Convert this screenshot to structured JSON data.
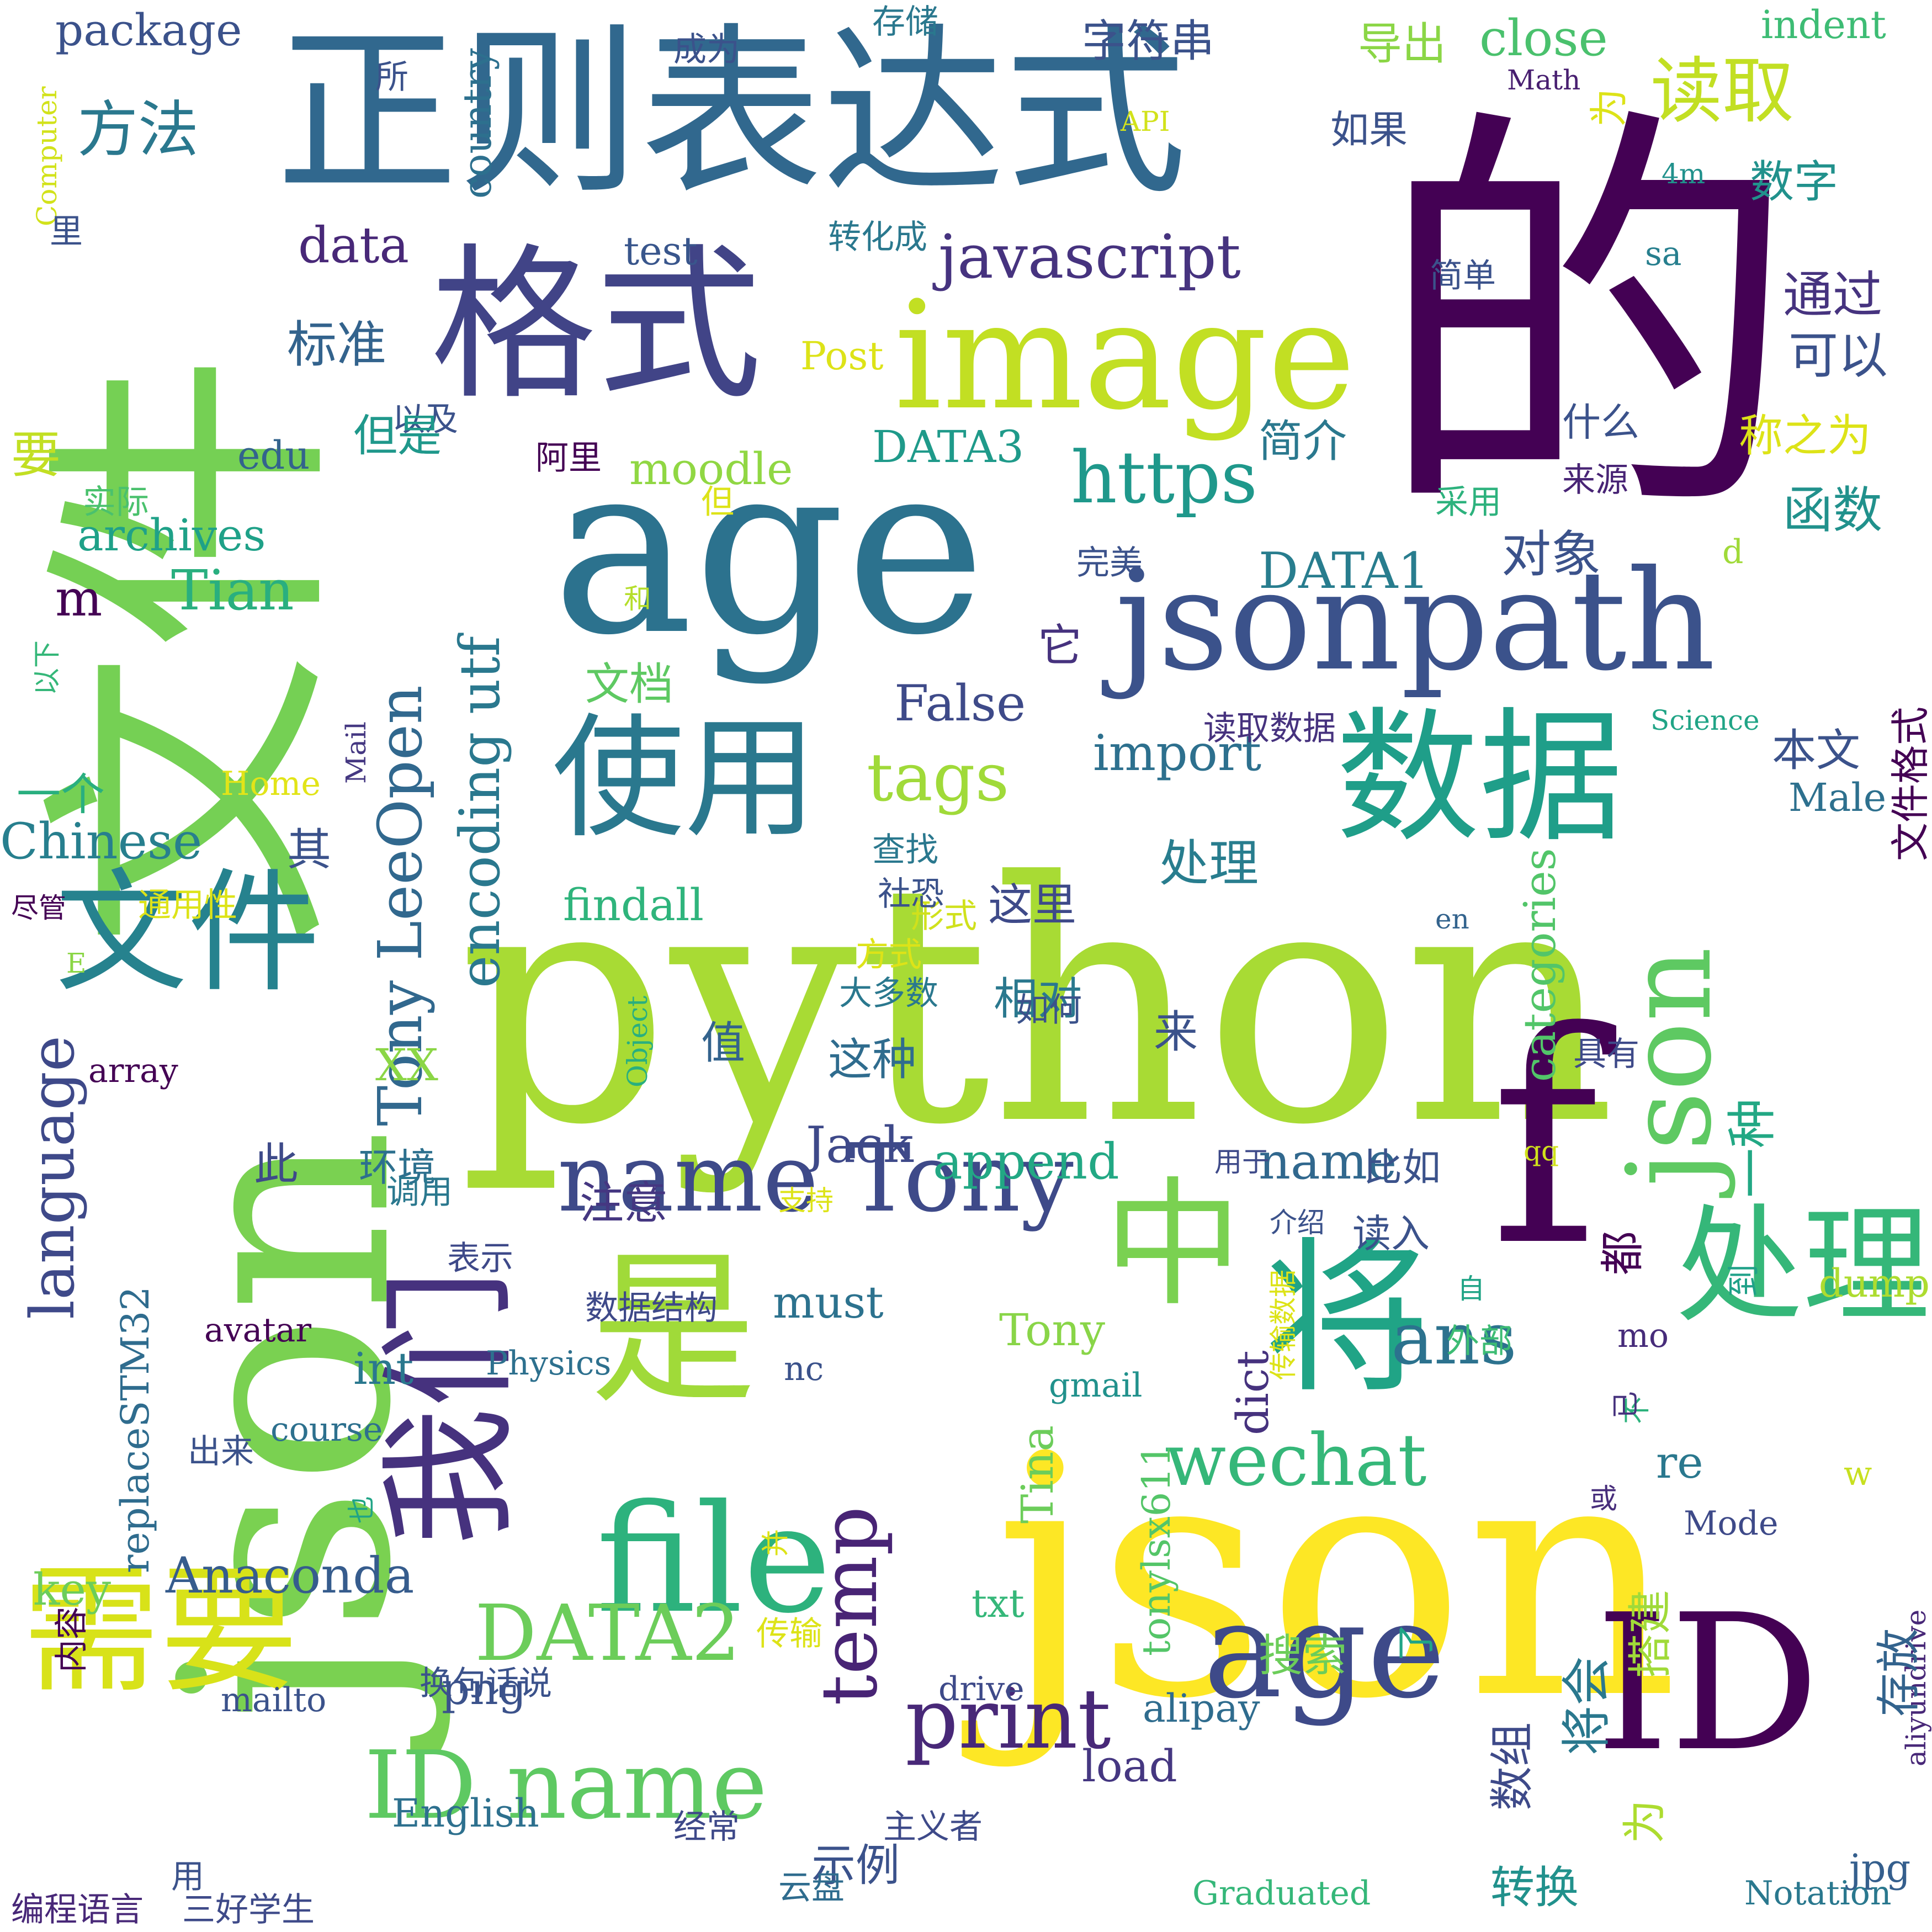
{
  "colors": {
    "background": "#ffffff",
    "palette": [
      "#440154",
      "#3b528b",
      "#21918c",
      "#5ec962",
      "#fde725"
    ]
  },
  "words": [
    {
      "text": "的",
      "color": "#440154"
    },
    {
      "text": "python",
      "color": "#a8db34"
    },
    {
      "text": "json",
      "color": "#fde725"
    },
    {
      "text": "age",
      "color": "#2c728e"
    },
    {
      "text": "正则表达式",
      "color": "#31688e"
    },
    {
      "text": "文件",
      "color": "#75d054"
    },
    {
      "text": "json",
      "color": "#7ad151"
    },
    {
      "text": "jsonpath",
      "color": "#3b528b"
    },
    {
      "text": "格式",
      "color": "#414487"
    },
    {
      "text": "image",
      "color": "#c2df23"
    },
    {
      "text": "数据",
      "color": "#1f9e89"
    },
    {
      "text": "使用",
      "color": "#2a788e"
    },
    {
      "text": "是",
      "color": "#a0da39"
    },
    {
      "text": "f",
      "color": "#440154"
    },
    {
      "text": "json",
      "color": "#5ec962"
    },
    {
      "text": "file",
      "color": "#2db27d"
    },
    {
      "text": "需要",
      "color": "#d8e219"
    },
    {
      "text": "age",
      "color": "#3e4a89"
    },
    {
      "text": "ID",
      "color": "#440154"
    },
    {
      "text": "中",
      "color": "#7ad151"
    },
    {
      "text": "将",
      "color": "#20a486"
    },
    {
      "text": "处理",
      "color": "#35b779"
    },
    {
      "text": "我们",
      "color": "#46327e"
    },
    {
      "text": "文件",
      "color": "#26828e"
    },
    {
      "text": "temp",
      "color": "#482475"
    },
    {
      "text": "name Tony",
      "color": "#3e4a89"
    },
    {
      "text": "ID name",
      "color": "#5ec962"
    },
    {
      "text": "print",
      "color": "#482878"
    },
    {
      "text": "DATA2",
      "color": "#6ccd5a"
    },
    {
      "text": "wechat",
      "color": "#35b779"
    },
    {
      "text": "ans",
      "color": "#2c728e"
    },
    {
      "text": "https",
      "color": "#1f988b"
    },
    {
      "text": "读取",
      "color": "#c2df23"
    },
    {
      "text": "方法",
      "color": "#2a788e"
    },
    {
      "text": "javascript",
      "color": "#46337f"
    },
    {
      "text": "tags",
      "color": "#a0da39"
    },
    {
      "text": "language",
      "color": "#3e4989"
    },
    {
      "text": "Tony LeeOpen",
      "color": "#31688e"
    },
    {
      "text": "encoding utf",
      "color": "#2a788e"
    },
    {
      "text": "Chinese",
      "color": "#277f8e"
    },
    {
      "text": "Anaconda",
      "color": "#365c8d"
    },
    {
      "text": "import",
      "color": "#2d708e"
    },
    {
      "text": "False",
      "color": "#3e4a89"
    },
    {
      "text": "DATA3",
      "color": "#1f9a8a"
    },
    {
      "text": "DATA1",
      "color": "#287d8e"
    },
    {
      "text": "archives",
      "color": "#1fa188"
    },
    {
      "text": "Tian",
      "color": "#29af7f"
    },
    {
      "text": "findall",
      "color": "#2fb47c"
    },
    {
      "text": "moodle",
      "color": "#90d743"
    },
    {
      "text": "close",
      "color": "#4ac16d"
    },
    {
      "text": "data",
      "color": "#482878"
    },
    {
      "text": "package",
      "color": "#3b528b"
    },
    {
      "text": "country",
      "color": "#2d708e"
    },
    {
      "text": "name",
      "color": "#31688e"
    },
    {
      "text": "append",
      "color": "#22a884"
    },
    {
      "text": "Jack",
      "color": "#3e4989"
    },
    {
      "text": "must",
      "color": "#2c728e"
    },
    {
      "text": "Tony",
      "color": "#89d548"
    },
    {
      "text": "categories",
      "color": "#52c569"
    },
    {
      "text": "key",
      "color": "#6ccd5a"
    },
    {
      "text": "png",
      "color": "#3b528b"
    },
    {
      "text": "load",
      "color": "#453781"
    },
    {
      "text": "re",
      "color": "#2a788e"
    },
    {
      "text": "jpg",
      "color": "#355f8d"
    },
    {
      "text": "English",
      "color": "#2d708e"
    },
    {
      "text": "alipay",
      "color": "#2f6c8e"
    },
    {
      "text": "dict",
      "color": "#46327e"
    },
    {
      "text": "Tina",
      "color": "#6ccd5a"
    },
    {
      "text": "tonylsx611",
      "color": "#54c568"
    },
    {
      "text": "aliyundrive",
      "color": "#482878"
    },
    {
      "text": "replaceSTM32",
      "color": "#2f6c8e"
    },
    {
      "text": "int",
      "color": "#2a788e"
    },
    {
      "text": "txt",
      "color": "#35b779"
    },
    {
      "text": "edu",
      "color": "#33638d"
    },
    {
      "text": "test",
      "color": "#39568c"
    },
    {
      "text": "m",
      "color": "#440154"
    },
    {
      "text": "d",
      "color": "#a0da39"
    },
    {
      "text": "w",
      "color": "#c8e020"
    },
    {
      "text": "XX",
      "color": "#8bd646"
    },
    {
      "text": "mo",
      "color": "#472c7a"
    },
    {
      "text": "nc",
      "color": "#3b528b"
    },
    {
      "text": "dump",
      "color": "#addc30"
    },
    {
      "text": "Post",
      "color": "#dde318"
    },
    {
      "text": "Male",
      "color": "#2d708e"
    },
    {
      "text": "Math",
      "color": "#481f70"
    },
    {
      "text": "API",
      "color": "#d2e21b"
    },
    {
      "text": "4m",
      "color": "#21918c"
    },
    {
      "text": "sa",
      "color": "#277f8e"
    },
    {
      "text": "en",
      "color": "#33638d"
    },
    {
      "text": "E",
      "color": "#8bd646"
    },
    {
      "text": "qq",
      "color": "#d0e11c"
    },
    {
      "text": "Home",
      "color": "#e2e418"
    },
    {
      "text": "Mail",
      "color": "#453882"
    },
    {
      "text": "Science",
      "color": "#20a486"
    },
    {
      "text": "Computer",
      "color": "#d2e21b"
    },
    {
      "text": "Object",
      "color": "#29af7f"
    },
    {
      "text": "array",
      "color": "#440154"
    },
    {
      "text": "avatar",
      "color": "#440154"
    },
    {
      "text": "Physics",
      "color": "#2d708e"
    },
    {
      "text": "gmail",
      "color": "#21918c"
    },
    {
      "text": "course",
      "color": "#2d708e"
    },
    {
      "text": "mailto",
      "color": "#3b528b"
    },
    {
      "text": "drive",
      "color": "#3e4a89"
    },
    {
      "text": "Mode",
      "color": "#3e4a89"
    },
    {
      "text": "Graduated",
      "color": "#35b779"
    },
    {
      "text": "Notation",
      "color": "#2a788e"
    },
    {
      "text": "indent",
      "color": "#3dbc74"
    },
    {
      "text": "字符串",
      "color": "#3b528b"
    },
    {
      "text": "导出",
      "color": "#8bd646"
    },
    {
      "text": "如果",
      "color": "#3b528b"
    },
    {
      "text": "数字",
      "color": "#21918c"
    },
    {
      "text": "通过",
      "color": "#46337f"
    },
    {
      "text": "可以",
      "color": "#3b528b"
    },
    {
      "text": "称之为",
      "color": "#dde318"
    },
    {
      "text": "函数",
      "color": "#21918c"
    },
    {
      "text": "来源",
      "color": "#482475"
    },
    {
      "text": "对象",
      "color": "#3b528b"
    },
    {
      "text": "标准",
      "color": "#33638d"
    },
    {
      "text": "要",
      "color": "#c2df23"
    },
    {
      "text": "其",
      "color": "#3b528b"
    },
    {
      "text": "这里",
      "color": "#3e4a89"
    },
    {
      "text": "处理",
      "color": "#287d8e"
    },
    {
      "text": "相对",
      "color": "#2a788e"
    },
    {
      "text": "值",
      "color": "#33638d"
    },
    {
      "text": "这种",
      "color": "#2f6c8e"
    },
    {
      "text": "环境",
      "color": "#2d708e"
    },
    {
      "text": "注意",
      "color": "#453781"
    },
    {
      "text": "比如",
      "color": "#3b528b"
    },
    {
      "text": "读入",
      "color": "#3b528b"
    },
    {
      "text": "一种",
      "color": "#22a884"
    },
    {
      "text": "都",
      "color": "#440154"
    },
    {
      "text": "到",
      "color": "#1fa188"
    },
    {
      "text": "自",
      "color": "#20a486"
    },
    {
      "text": "外部",
      "color": "#3dbc74"
    },
    {
      "text": "不",
      "color": "#2db27d"
    },
    {
      "text": "已",
      "color": "#46327e"
    },
    {
      "text": "或",
      "color": "#472d7b"
    },
    {
      "text": "了",
      "color": "#20a486"
    },
    {
      "text": "搭建",
      "color": "#a0da39"
    },
    {
      "text": "存放",
      "color": "#33638d"
    },
    {
      "text": "搜索",
      "color": "#6ccd5a"
    },
    {
      "text": "数组",
      "color": "#3e4a89"
    },
    {
      "text": "将会",
      "color": "#2a788e"
    },
    {
      "text": "转换",
      "color": "#21918c"
    },
    {
      "text": "为",
      "color": "#addc30"
    },
    {
      "text": "为",
      "color": "#dde318"
    },
    {
      "text": "示例",
      "color": "#3b528b"
    },
    {
      "text": "主义者",
      "color": "#3e4a89"
    },
    {
      "text": "云盘",
      "color": "#2f6c8e"
    },
    {
      "text": "经常",
      "color": "#3e4989"
    },
    {
      "text": "传输",
      "color": "#dde318"
    },
    {
      "text": "换句话说",
      "color": "#3b528b"
    },
    {
      "text": "编程语言",
      "color": "#482878"
    },
    {
      "text": "三好学生",
      "color": "#3e4a89"
    },
    {
      "text": "用",
      "color": "#3b528b"
    },
    {
      "text": "内容",
      "color": "#440154"
    },
    {
      "text": "并",
      "color": "#dde318"
    },
    {
      "text": "也",
      "color": "#20a486"
    },
    {
      "text": "出来",
      "color": "#3b528b"
    },
    {
      "text": "表示",
      "color": "#3e4989"
    },
    {
      "text": "数据结构",
      "color": "#3e4989"
    },
    {
      "text": "介绍",
      "color": "#3b528b"
    },
    {
      "text": "用于",
      "color": "#3e4a89"
    },
    {
      "text": "支持",
      "color": "#dde318"
    },
    {
      "text": "调用",
      "color": "#2a788e"
    },
    {
      "text": "此",
      "color": "#3e4a89"
    },
    {
      "text": "来",
      "color": "#3b528b"
    },
    {
      "text": "如何",
      "color": "#3b528b"
    },
    {
      "text": "大多数",
      "color": "#2a788e"
    },
    {
      "text": "方式",
      "color": "#dde318"
    },
    {
      "text": "形式",
      "color": "#d0e11c"
    },
    {
      "text": "社恐",
      "color": "#3b528b"
    },
    {
      "text": "查找",
      "color": "#2a788e"
    },
    {
      "text": "通用性",
      "color": "#dde318"
    },
    {
      "text": "尽管",
      "color": "#440154"
    },
    {
      "text": "文档",
      "color": "#5ec962"
    },
    {
      "text": "它",
      "color": "#46327e"
    },
    {
      "text": "读取数据",
      "color": "#46327e"
    },
    {
      "text": "本文",
      "color": "#3b528b"
    },
    {
      "text": "具有",
      "color": "#3e4a89"
    },
    {
      "text": "文件格式",
      "color": "#440154"
    },
    {
      "text": "传输数据",
      "color": "#dde318"
    },
    {
      "text": "一个",
      "color": "#29af7f"
    },
    {
      "text": "以下",
      "color": "#35b779"
    },
    {
      "text": "和",
      "color": "#b5de2b"
    },
    {
      "text": "完美",
      "color": "#3b528b"
    },
    {
      "text": "但",
      "color": "#dde318"
    },
    {
      "text": "采用",
      "color": "#2db27d"
    },
    {
      "text": "阿里",
      "color": "#440154"
    },
    {
      "text": "以及",
      "color": "#3b528b"
    },
    {
      "text": "实际",
      "color": "#4ac16d"
    },
    {
      "text": "但是",
      "color": "#1f988b"
    },
    {
      "text": "简介",
      "color": "#2a788e"
    },
    {
      "text": "什么",
      "color": "#3b528b"
    },
    {
      "text": "简单",
      "color": "#3b528b"
    },
    {
      "text": "转化成",
      "color": "#2a788e"
    },
    {
      "text": "成为",
      "color": "#3b528b"
    },
    {
      "text": "存储",
      "color": "#2a788e"
    },
    {
      "text": "所",
      "color": "#3b528b"
    },
    {
      "text": "里",
      "color": "#3b528b"
    }
  ]
}
